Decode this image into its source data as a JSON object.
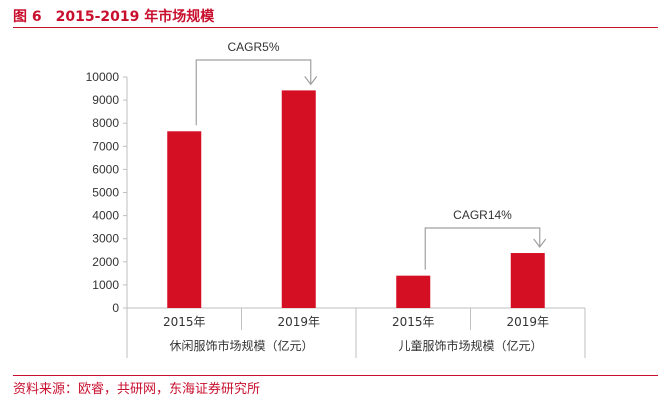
{
  "figure": {
    "number": "图 6",
    "title": "2015-2019 年市场规模",
    "source": "资料来源：欧睿，共研网，东海证券研究所"
  },
  "colors": {
    "accent": "#c8102e",
    "bar": "#d40f24",
    "axis": "#bfbfbf",
    "arrow": "#a0a0a0"
  },
  "chart_data": {
    "type": "bar",
    "ylim": [
      0,
      10000
    ],
    "ytick_step": 1000,
    "grid": false,
    "legend": "none",
    "groups": [
      {
        "label": "休闲服饰市场规模（亿元）",
        "categories": [
          "2015年",
          "2019年"
        ],
        "values": [
          7650,
          9420
        ],
        "annotation": "CAGR5%"
      },
      {
        "label": "儿童服饰市场规模（亿元）",
        "categories": [
          "2015年",
          "2019年"
        ],
        "values": [
          1400,
          2380
        ],
        "annotation": "CAGR14%"
      }
    ]
  }
}
